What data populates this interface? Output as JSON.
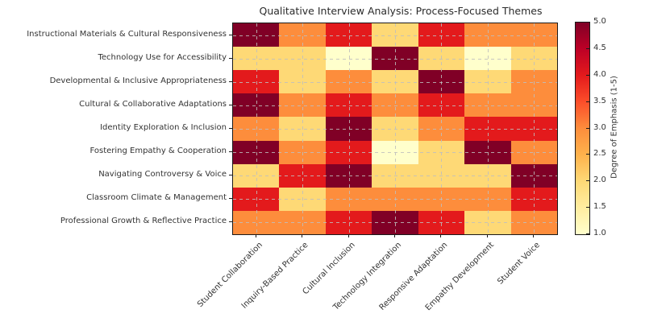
{
  "title": "Qualitative Interview Analysis: Process-Focused Themes",
  "chart_data": {
    "type": "heatmap",
    "title": "Qualitative Interview Analysis: Process-Focused Themes",
    "rows": [
      "Instructional Materials & Cultural Responsiveness",
      "Technology Use for Accessibility",
      "Developmental & Inclusive Appropriateness",
      "Cultural & Collaborative Adaptations",
      "Identity Exploration & Inclusion",
      "Fostering Empathy & Cooperation",
      "Navigating Controversy & Voice",
      "Classroom Climate & Management",
      "Professional Growth & Reflective Practice"
    ],
    "columns": [
      "Student Collaboration",
      "Inquiry-Based Practice",
      "Cultural Inclusion",
      "Technology Integration",
      "Responsive Adaptation",
      "Empathy Development",
      "Student Voice"
    ],
    "values": [
      [
        5,
        3,
        4,
        2,
        4,
        3,
        3
      ],
      [
        2,
        2,
        1,
        5,
        2,
        1,
        2
      ],
      [
        4,
        2,
        3,
        2,
        5,
        2,
        3
      ],
      [
        5,
        3,
        4,
        3,
        4,
        3,
        3
      ],
      [
        3,
        2,
        5,
        2,
        3,
        4,
        4
      ],
      [
        5,
        3,
        4,
        1,
        2,
        5,
        3
      ],
      [
        2,
        4,
        5,
        2,
        2,
        2,
        5
      ],
      [
        4,
        2,
        3,
        3,
        3,
        3,
        4
      ],
      [
        3,
        3,
        4,
        5,
        4,
        2,
        3
      ]
    ],
    "value_range": [
      1,
      5
    ],
    "colormap": "YlOrRd",
    "value_colors": {
      "1": "#ffffcc",
      "2": "#fed976",
      "3": "#fd8d3c",
      "4": "#e31a1c",
      "5": "#800026"
    },
    "grid": true,
    "grid_style": "dashed",
    "colorbar": {
      "label": "Degree of Emphasis (1-5)",
      "ticks": [
        "5.0",
        "4.5",
        "4.0",
        "3.5",
        "3.0",
        "2.5",
        "2.0",
        "1.5",
        "1.0"
      ],
      "gradient_stops": [
        "#ffffcc",
        "#ffeda0",
        "#fed976",
        "#feb24c",
        "#fd8d3c",
        "#fc4e2a",
        "#e31a1c",
        "#bd0026",
        "#800026"
      ]
    }
  }
}
